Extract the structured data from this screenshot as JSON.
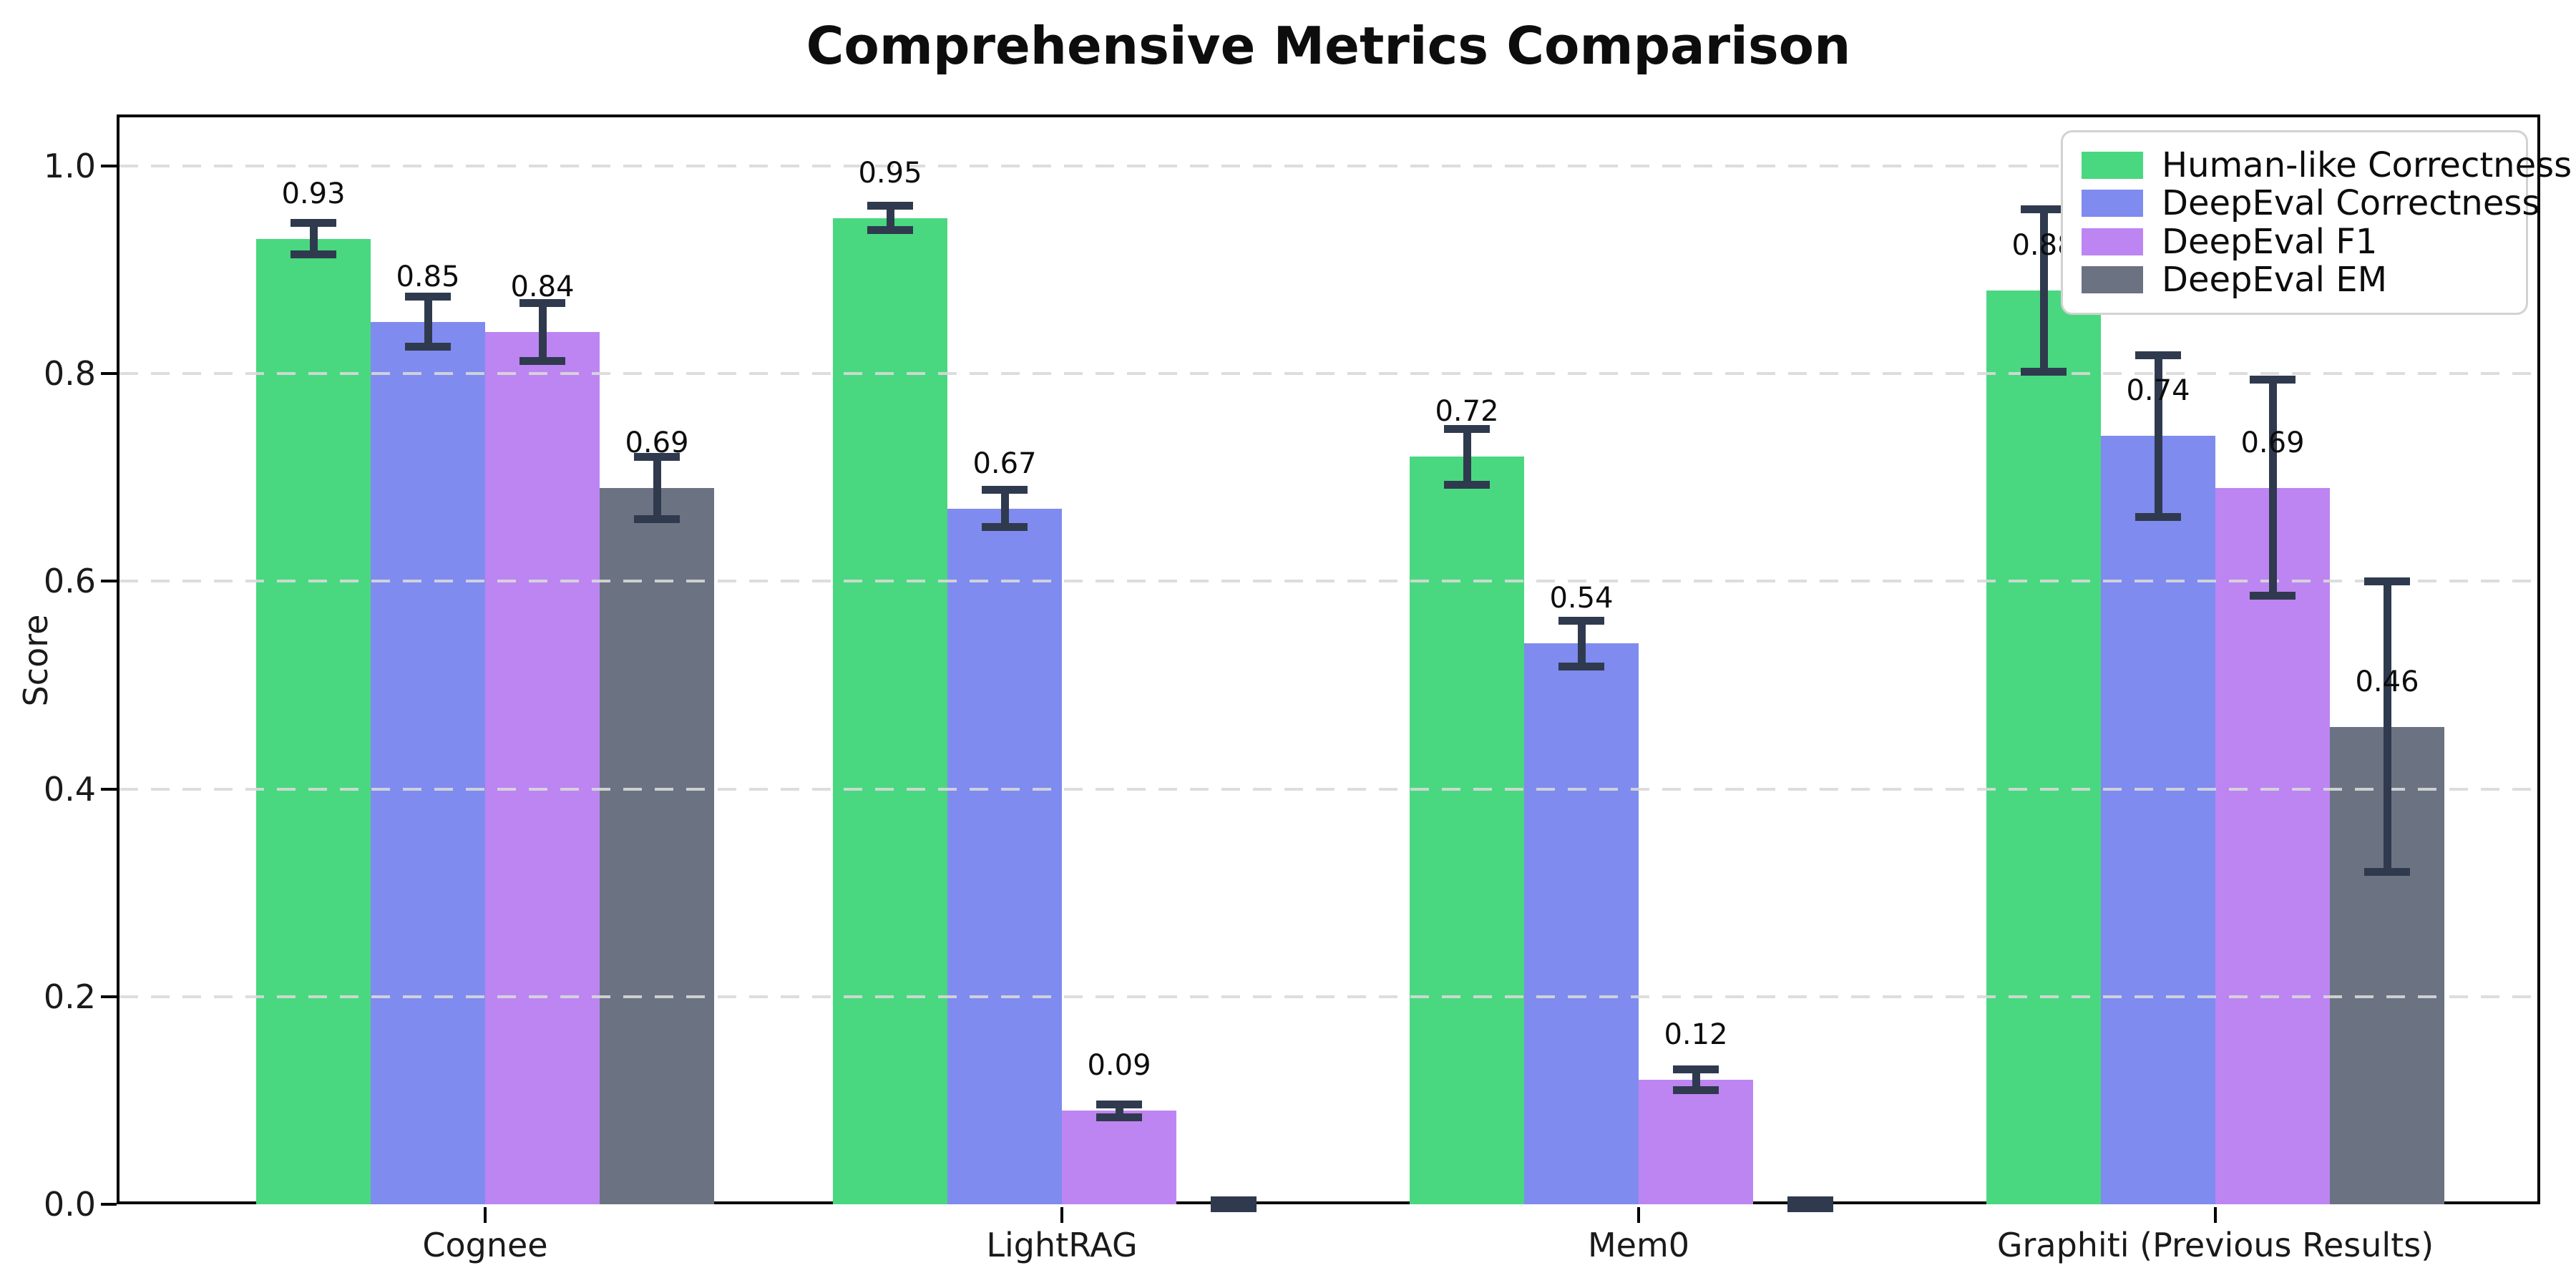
{
  "title": "Comprehensive Metrics Comparison",
  "chart_data": {
    "type": "bar",
    "title": "Comprehensive Metrics Comparison",
    "xlabel": "",
    "ylabel": "Score",
    "ylim": [
      0.0,
      1.05
    ],
    "yticks": [
      0.0,
      0.2,
      0.4,
      0.6,
      0.8,
      1.0
    ],
    "ytick_labels": [
      "0.0",
      "0.2",
      "0.4",
      "0.6",
      "0.8",
      "1.0"
    ],
    "grid": "horizontal-dashed",
    "legend_position": "upper right",
    "error_bar_color": "#2f3a4e",
    "categories": [
      "Cognee",
      "LightRAG",
      "Mem0",
      "Graphiti (Previous Results)"
    ],
    "series": [
      {
        "name": "Human-like Correctness",
        "color": "#49d87f",
        "values": [
          0.93,
          0.95,
          0.72,
          0.88
        ],
        "errors": [
          0.015,
          0.012,
          0.027,
          0.078
        ],
        "bar_labels": [
          "0.93",
          "0.95",
          "0.72",
          "0.88"
        ]
      },
      {
        "name": "DeepEval Correctness",
        "color": "#7f8bef",
        "values": [
          0.85,
          0.67,
          0.54,
          0.74
        ],
        "errors": [
          0.024,
          0.018,
          0.022,
          0.078
        ],
        "bar_labels": [
          "0.85",
          "0.67",
          "0.54",
          "0.74"
        ]
      },
      {
        "name": "DeepEval F1",
        "color": "#bd85f1",
        "values": [
          0.84,
          0.09,
          0.12,
          0.69
        ],
        "errors": [
          0.028,
          0.006,
          0.01,
          0.104
        ],
        "bar_labels": [
          "0.84",
          "0.09",
          "0.12",
          "0.69"
        ]
      },
      {
        "name": "DeepEval EM",
        "color": "#6b7382",
        "values": [
          0.69,
          0.0,
          0.0,
          0.46
        ],
        "errors": [
          0.03,
          0.004,
          0.004,
          0.14
        ],
        "bar_labels": [
          "0.69",
          "",
          "",
          "0.46"
        ]
      }
    ]
  }
}
